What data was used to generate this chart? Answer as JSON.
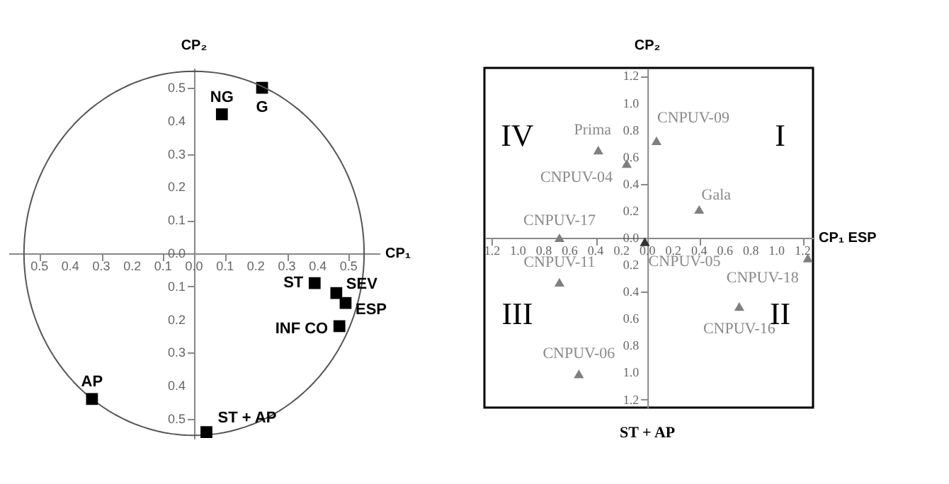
{
  "chart_data": [
    {
      "type": "scatter",
      "xlabel": "CP₁",
      "ylabel": "CP₂",
      "marker": "square",
      "grid": false,
      "xlim": [
        -0.6,
        0.6
      ],
      "ylim": [
        -0.56,
        0.56
      ],
      "xticks": [
        {
          "value": -0.5,
          "label": "0.5"
        },
        {
          "value": -0.4,
          "label": "0.4"
        },
        {
          "value": -0.3,
          "label": "0.3"
        },
        {
          "value": -0.2,
          "label": "0.2"
        },
        {
          "value": -0.1,
          "label": "0.1"
        },
        {
          "value": 0,
          "label": "0.0"
        },
        {
          "value": 0.1,
          "label": "0.1"
        },
        {
          "value": 0.2,
          "label": "0.2"
        },
        {
          "value": 0.3,
          "label": "0.3"
        },
        {
          "value": 0.4,
          "label": "0.4"
        },
        {
          "value": 0.5,
          "label": "0.5"
        }
      ],
      "yticks": [
        {
          "value": -0.5,
          "label": "0.5"
        },
        {
          "value": -0.4,
          "label": "0.4"
        },
        {
          "value": -0.3,
          "label": "0.3"
        },
        {
          "value": -0.2,
          "label": "0.2"
        },
        {
          "value": -0.1,
          "label": "0.1"
        },
        {
          "value": 0,
          "label": "0.0"
        },
        {
          "value": 0.1,
          "label": "0.1"
        },
        {
          "value": 0.2,
          "label": "0.2"
        },
        {
          "value": 0.3,
          "label": "0.3"
        },
        {
          "value": 0.4,
          "label": "0.4"
        },
        {
          "value": 0.5,
          "label": "0.5"
        }
      ],
      "series": [
        {
          "name": "G",
          "color": "#000000",
          "x": [
            0.22
          ],
          "values": [
            0.5
          ]
        },
        {
          "name": "NG",
          "color": "#000000",
          "x": [
            0.09
          ],
          "values": [
            0.42
          ]
        },
        {
          "name": "ST",
          "color": "#000000",
          "x": [
            0.39
          ],
          "values": [
            -0.09
          ]
        },
        {
          "name": "SEV",
          "color": "#000000",
          "x": [
            0.46
          ],
          "values": [
            -0.12
          ]
        },
        {
          "name": "ESP",
          "color": "#000000",
          "x": [
            0.49
          ],
          "values": [
            -0.15
          ]
        },
        {
          "name": "INF CO",
          "color": "#000000",
          "x": [
            0.47
          ],
          "values": [
            -0.22
          ]
        },
        {
          "name": "AP",
          "color": "#000000",
          "x": [
            -0.33
          ],
          "values": [
            -0.44
          ]
        },
        {
          "name": "ST + AP",
          "color": "#000000",
          "x": [
            0.04
          ],
          "values": [
            -0.54
          ]
        }
      ]
    },
    {
      "type": "scatter",
      "xlabel": "CP₁ ESP",
      "ylabel": "CP₂",
      "marker": "triangle",
      "grid": false,
      "xlim": [
        -1.26,
        1.28
      ],
      "ylim": [
        -1.26,
        1.26
      ],
      "xticks": [
        {
          "value": -1.2,
          "label": "1.2"
        },
        {
          "value": -1.0,
          "label": "1.0"
        },
        {
          "value": -0.8,
          "label": "0.8"
        },
        {
          "value": -0.6,
          "label": "0.6"
        },
        {
          "value": -0.4,
          "label": "0.4"
        },
        {
          "value": -0.2,
          "label": "0.2"
        },
        {
          "value": 0,
          "label": "0.0"
        },
        {
          "value": 0.2,
          "label": "0.2"
        },
        {
          "value": 0.4,
          "label": "0.4"
        },
        {
          "value": 0.6,
          "label": "0.6"
        },
        {
          "value": 0.8,
          "label": "0.8"
        },
        {
          "value": 1.0,
          "label": "1.0"
        },
        {
          "value": 1.2,
          "label": "1.2"
        }
      ],
      "yticks": [
        {
          "value": -1.2,
          "label": "1.2"
        },
        {
          "value": -1.0,
          "label": "1.0"
        },
        {
          "value": -0.8,
          "label": "0.8"
        },
        {
          "value": -0.6,
          "label": "0.6"
        },
        {
          "value": -0.4,
          "label": "0.4"
        },
        {
          "value": -0.2,
          "label": "0.2"
        },
        {
          "value": 0,
          "label": "0.0"
        },
        {
          "value": 0.2,
          "label": "0.2"
        },
        {
          "value": 0.4,
          "label": "0.4"
        },
        {
          "value": 0.6,
          "label": "0.6"
        },
        {
          "value": 0.8,
          "label": "0.8"
        },
        {
          "value": 1.0,
          "label": "1.0"
        },
        {
          "value": 1.2,
          "label": "1.2"
        }
      ],
      "annotations": [
        "I",
        "II",
        "III",
        "IV",
        "ST + AP"
      ],
      "series": [
        {
          "name": "Prima",
          "color": "#7f7f7f",
          "x": [
            -0.38
          ],
          "values": [
            0.65
          ]
        },
        {
          "name": "CNPUV-04",
          "color": "#7f7f7f",
          "x": [
            -0.16
          ],
          "values": [
            0.55
          ]
        },
        {
          "name": "CNPUV-09",
          "color": "#7f7f7f",
          "x": [
            0.07
          ],
          "values": [
            0.72
          ]
        },
        {
          "name": "Gala",
          "color": "#7f7f7f",
          "x": [
            0.4
          ],
          "values": [
            0.21
          ]
        },
        {
          "name": "CNPUV-17",
          "color": "#7f7f7f",
          "x": [
            -0.68
          ],
          "values": [
            0.0
          ]
        },
        {
          "name": "CNPUV-11",
          "color": "#7f7f7f",
          "x": [
            -0.68
          ],
          "values": [
            -0.33
          ]
        },
        {
          "name": "CNPUV-06",
          "color": "#7f7f7f",
          "x": [
            -0.53
          ],
          "values": [
            -1.01
          ]
        },
        {
          "name": "CNPUV-05",
          "color": "#333333",
          "x": [
            -0.02
          ],
          "values": [
            -0.03
          ]
        },
        {
          "name": "CNPUV-18",
          "color": "#7f7f7f",
          "x": [
            1.24
          ],
          "values": [
            -0.15
          ]
        },
        {
          "name": "CNPUV-16",
          "color": "#7f7f7f",
          "x": [
            0.71
          ],
          "values": [
            -0.51
          ]
        }
      ]
    }
  ]
}
